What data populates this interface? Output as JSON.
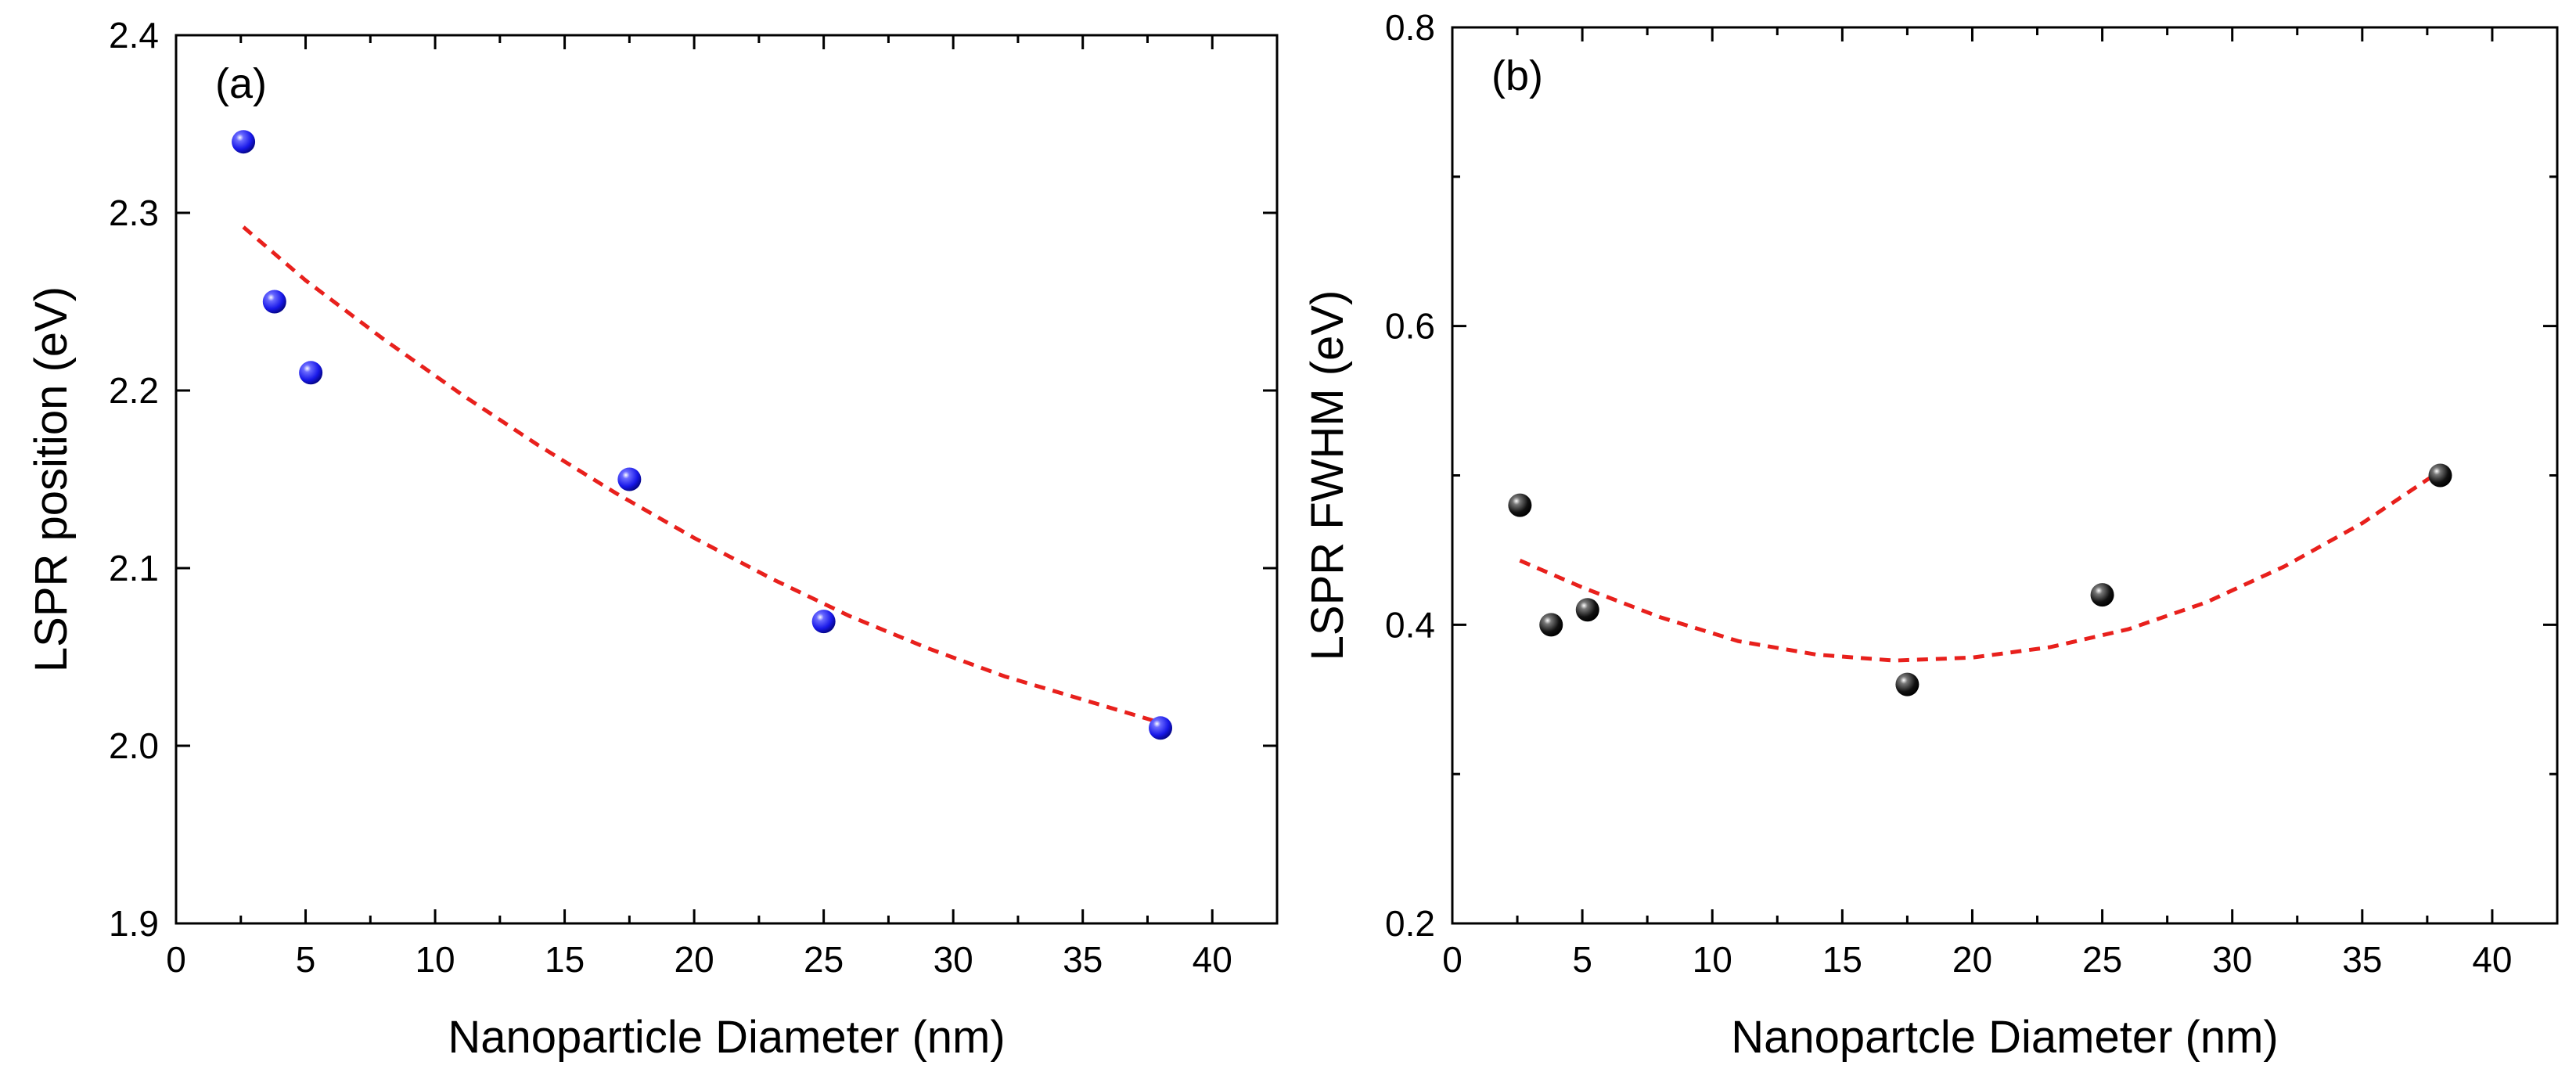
{
  "chart_data": [
    {
      "type": "scatter",
      "panel_label": "(a)",
      "xlabel": "Nanoparticle Diameter (nm)",
      "ylabel": "LSPR position (eV)",
      "xlim": [
        0,
        42.5
      ],
      "ylim": [
        1.9,
        2.4
      ],
      "xticks": [
        0,
        5,
        10,
        15,
        20,
        25,
        30,
        35,
        40
      ],
      "xtick_labels": [
        "0",
        "5",
        "10",
        "15",
        "20",
        "25",
        "30",
        "35",
        "40"
      ],
      "yticks": [
        1.9,
        2.0,
        2.1,
        2.2,
        2.3,
        2.4
      ],
      "ytick_labels": [
        "1.9",
        "2.0",
        "2.1",
        "2.2",
        "2.3",
        "2.4"
      ],
      "series": [
        {
          "name": "data",
          "kind": "points",
          "color": "#1a1aff",
          "x": [
            2.6,
            3.8,
            5.2,
            17.5,
            25.0,
            38.0
          ],
          "y": [
            2.34,
            2.25,
            2.21,
            2.15,
            2.07,
            2.01
          ]
        },
        {
          "name": "fit",
          "kind": "dashed-line",
          "color": "#e8201c",
          "x": [
            2.6,
            5,
            8,
            11,
            14,
            17,
            20,
            23,
            26,
            29,
            32,
            35,
            38
          ],
          "y": [
            2.292,
            2.262,
            2.229,
            2.198,
            2.169,
            2.142,
            2.117,
            2.094,
            2.073,
            2.055,
            2.039,
            2.026,
            2.013
          ]
        }
      ]
    },
    {
      "type": "scatter",
      "panel_label": "(b)",
      "xlabel": "Nanopartcle Diameter (nm)",
      "ylabel": "LSPR FWHM (eV)",
      "xlim": [
        0,
        42.5
      ],
      "ylim": [
        0.2,
        0.8
      ],
      "xticks": [
        0,
        5,
        10,
        15,
        20,
        25,
        30,
        35,
        40
      ],
      "xtick_labels": [
        "0",
        "5",
        "10",
        "15",
        "20",
        "25",
        "30",
        "35",
        "40"
      ],
      "yticks": [
        0.2,
        0.4,
        0.6,
        0.8
      ],
      "ytick_labels": [
        "0.2",
        "0.4",
        "0.6",
        "0.8"
      ],
      "yminor_ticks": [
        0.3,
        0.5,
        0.7
      ],
      "series": [
        {
          "name": "data",
          "kind": "points",
          "color": "#111111",
          "x": [
            2.6,
            3.8,
            5.2,
            17.5,
            25.0,
            38.0
          ],
          "y": [
            0.48,
            0.4,
            0.41,
            0.36,
            0.42,
            0.5
          ]
        },
        {
          "name": "fit",
          "kind": "dashed-line",
          "color": "#e8201c",
          "x": [
            2.6,
            5,
            8,
            11,
            14,
            17,
            20,
            23,
            26,
            29,
            32,
            35,
            38
          ],
          "y": [
            0.443,
            0.425,
            0.405,
            0.389,
            0.38,
            0.376,
            0.378,
            0.385,
            0.397,
            0.415,
            0.439,
            0.468,
            0.503
          ]
        }
      ]
    }
  ]
}
